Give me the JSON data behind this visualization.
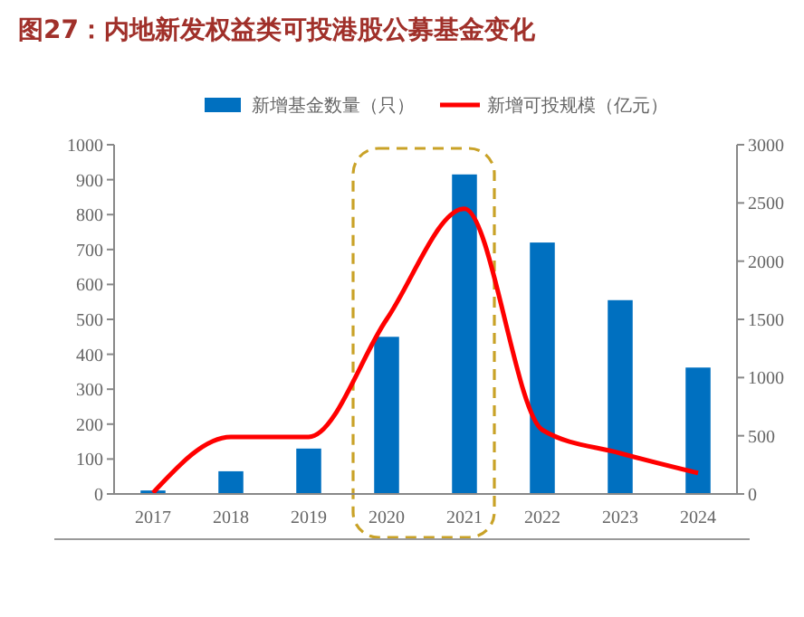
{
  "chart_data": {
    "type": "bar",
    "title": "图27：内地新发权益类可投港股公募基金变化",
    "categories": [
      "2017",
      "2018",
      "2019",
      "2020",
      "2021",
      "2022",
      "2023",
      "2024"
    ],
    "series": [
      {
        "name": "新增基金数量（只）",
        "color": "#0070c0",
        "values": [
          10,
          65,
          130,
          450,
          915,
          720,
          555,
          362
        ]
      },
      {
        "name": "新增可投规模（亿元）",
        "color": "#ff0000",
        "type": "line",
        "axis": "y2",
        "values": [
          10,
          490,
          490,
          1500,
          2450,
          550,
          350,
          180
        ]
      }
    ],
    "ylim": [
      0,
      1000
    ],
    "yticks": [
      0,
      100,
      200,
      300,
      400,
      500,
      600,
      700,
      800,
      900,
      1000
    ],
    "y2lim": [
      0,
      3000
    ],
    "y2ticks": [
      0,
      500,
      1000,
      1500,
      2000,
      2500,
      3000
    ],
    "grid": false,
    "legend": "top",
    "marker": "none"
  }
}
